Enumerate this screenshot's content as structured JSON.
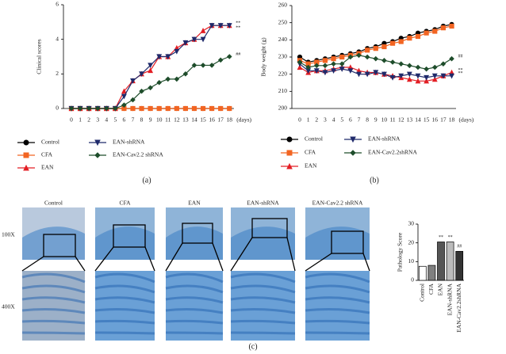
{
  "chart_data": [
    {
      "type": "line",
      "ylabel": "Clinical scores",
      "xlabel": "(days)",
      "categories": [
        "0",
        "1",
        "2",
        "3",
        "4",
        "5",
        "6",
        "7",
        "8",
        "9",
        "10",
        "11",
        "12",
        "13",
        "14",
        "15",
        "16",
        "17",
        "18"
      ],
      "ylim": [
        0,
        6
      ],
      "yticks": [
        0,
        2,
        4,
        6
      ],
      "series": [
        {
          "name": "Control",
          "color": "#000000",
          "marker": "circle",
          "values": [
            0,
            0,
            0,
            0,
            0,
            0,
            0,
            0,
            0,
            0,
            0,
            0,
            0,
            0,
            0,
            0,
            0,
            0,
            0
          ]
        },
        {
          "name": "CFA",
          "color": "#f26522",
          "marker": "square",
          "values": [
            0,
            0,
            0,
            0,
            0,
            0,
            0,
            0,
            0,
            0,
            0,
            0,
            0,
            0,
            0,
            0,
            0,
            0,
            0
          ]
        },
        {
          "name": "EAN",
          "color": "#e31e24",
          "marker": "triangle",
          "values": [
            0,
            0,
            0,
            0,
            0,
            0,
            1,
            1.6,
            2,
            2.2,
            3,
            3,
            3.5,
            3.8,
            4,
            4.5,
            4.8,
            4.8,
            4.8
          ]
        },
        {
          "name": "EAN-shRNA",
          "color": "#1f2a6b",
          "marker": "triangle-down",
          "values": [
            0,
            0,
            0,
            0,
            0,
            0,
            0.7,
            1.6,
            2,
            2.5,
            3,
            3,
            3.3,
            3.8,
            4,
            4,
            4.8,
            4.8,
            4.8
          ]
        },
        {
          "name": "EAN-Cav2.2 shRNA",
          "color": "#1e4d2b",
          "marker": "diamond",
          "values": [
            0,
            0,
            0,
            0,
            0,
            0,
            0.2,
            0.5,
            1,
            1.2,
            1.5,
            1.7,
            1.7,
            2,
            2.5,
            2.5,
            2.5,
            2.8,
            3
          ]
        }
      ],
      "annotations": [
        {
          "text": "**",
          "series": 2
        },
        {
          "text": "**",
          "series": 3
        },
        {
          "text": "##",
          "series": 4
        }
      ],
      "panel_label": "(a)"
    },
    {
      "type": "line",
      "ylabel": "Body weight (g)",
      "xlabel": "(days)",
      "categories": [
        "0",
        "1",
        "2",
        "3",
        "4",
        "5",
        "6",
        "7",
        "8",
        "9",
        "10",
        "11",
        "12",
        "13",
        "14",
        "15",
        "16",
        "17",
        "18"
      ],
      "ylim": [
        200,
        260
      ],
      "yticks": [
        200,
        210,
        220,
        230,
        240,
        250,
        260
      ],
      "series": [
        {
          "name": "Control",
          "color": "#000000",
          "marker": "circle",
          "values": [
            230,
            227,
            228,
            229,
            230,
            231,
            232,
            233,
            235,
            236,
            238,
            239,
            241,
            242,
            244,
            245,
            246,
            248,
            249
          ]
        },
        {
          "name": "CFA",
          "color": "#f26522",
          "marker": "square",
          "values": [
            228,
            226,
            227,
            228,
            229,
            230,
            231,
            232,
            234,
            235,
            236,
            238,
            239,
            241,
            242,
            244,
            245,
            247,
            248
          ]
        },
        {
          "name": "EAN",
          "color": "#e31e24",
          "marker": "triangle",
          "values": [
            224,
            221,
            222,
            222,
            223,
            224,
            224,
            222,
            221,
            221,
            220,
            219,
            218,
            217,
            216,
            216,
            217,
            219,
            221
          ]
        },
        {
          "name": "EAN-shRNA",
          "color": "#1f2a6b",
          "marker": "triangle-down",
          "values": [
            226,
            222,
            222,
            221,
            222,
            223,
            222,
            220,
            220,
            221,
            220,
            218,
            219,
            220,
            219,
            218,
            219,
            219,
            219
          ]
        },
        {
          "name": "EAN-Cav2.2shRNA",
          "color": "#1e4d2b",
          "marker": "diamond",
          "values": [
            227,
            224,
            225,
            225,
            226,
            226,
            230,
            231,
            230,
            229,
            228,
            227,
            226,
            225,
            224,
            223,
            224,
            226,
            229
          ]
        }
      ],
      "annotations": [
        {
          "text": "##",
          "series": 4
        },
        {
          "text": "**",
          "series": 2
        },
        {
          "text": "**",
          "series": 3
        }
      ],
      "panel_label": "(b)"
    },
    {
      "type": "bar",
      "ylabel": "Pathology Score",
      "categories": [
        "Control",
        "CFA",
        "EAN",
        "EAN-shRNA",
        "EAN-Cav2.2shRNA"
      ],
      "values": [
        7.5,
        8,
        20.5,
        20.5,
        15.5
      ],
      "colors": [
        "#ffffff",
        "#808080",
        "#555555",
        "#bbbbbb",
        "#333333"
      ],
      "ylim": [
        0,
        30
      ],
      "yticks": [
        0,
        10,
        20,
        30
      ],
      "value_labels": [
        "",
        "",
        "**",
        "**",
        "##"
      ]
    }
  ],
  "figure": {
    "columns": [
      "Control",
      "CFA",
      "EAN",
      "EAN-shRNA",
      "EAN-Cav2.2 shRNA"
    ],
    "rows": [
      "100X",
      "400X"
    ],
    "panel_label": "(c)"
  }
}
